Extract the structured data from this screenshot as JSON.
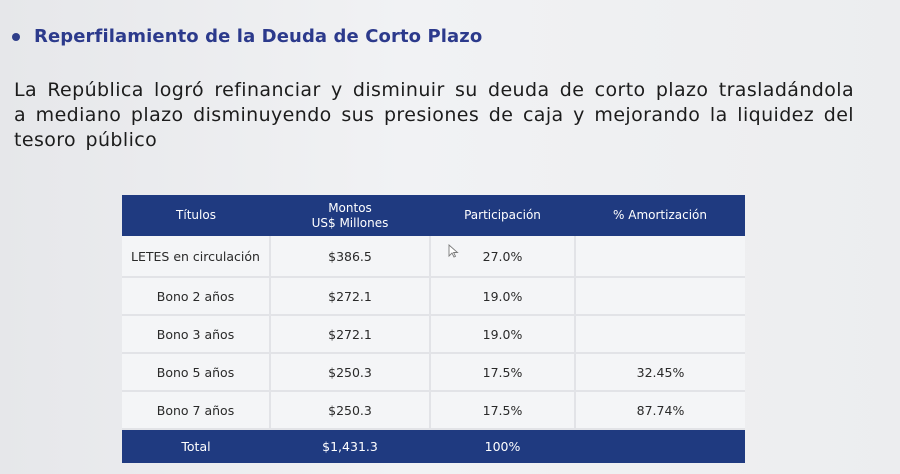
{
  "heading": "Reperfilamiento de la Deuda de Corto Plazo",
  "paragraph": "La República logró refinanciar y disminuir su deuda de corto plazo trasladándola a mediano plazo disminuyendo sus presiones de caja y mejorando la liquidez del tesoro público",
  "table": {
    "headers": {
      "titulos": "Títulos",
      "montos_line1": "Montos",
      "montos_line2": "US$ Millones",
      "participacion": "Participación",
      "amortizacion": "% Amortización"
    },
    "rows": [
      {
        "titulo": "LETES en circulación",
        "monto": "$386.5",
        "participacion": "27.0%",
        "amortizacion": ""
      },
      {
        "titulo": "Bono 2 años",
        "monto": "$272.1",
        "participacion": "19.0%",
        "amortizacion": ""
      },
      {
        "titulo": "Bono 3 años",
        "monto": "$272.1",
        "participacion": "19.0%",
        "amortizacion": ""
      },
      {
        "titulo": "Bono 5 años",
        "monto": "$250.3",
        "participacion": "17.5%",
        "amortizacion": "32.45%"
      },
      {
        "titulo": "Bono 7 años",
        "monto": "$250.3",
        "participacion": "17.5%",
        "amortizacion": "87.74%"
      }
    ],
    "total": {
      "titulo": "Total",
      "monto": "$1,431.3",
      "participacion": "100%",
      "amortizacion": ""
    }
  },
  "colors": {
    "heading": "#2c3a8c",
    "table_header_bg": "#1f3a80",
    "cell_bg": "#f4f5f7"
  }
}
